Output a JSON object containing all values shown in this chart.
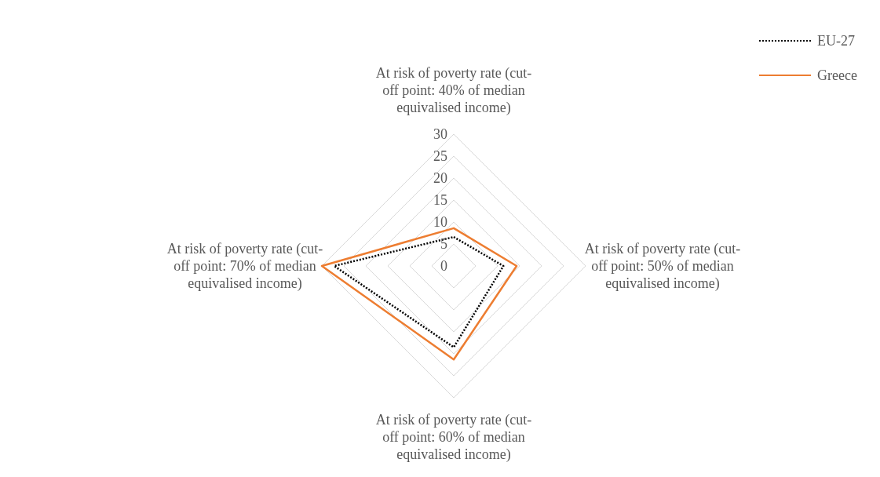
{
  "chart_data": {
    "type": "radar",
    "categories": [
      "At risk of poverty rate (cut-off point: 40% of median equivalised income)",
      "At risk of poverty rate (cut-off point: 50% of median equivalised income)",
      "At risk of poverty rate (cut-off point: 60% of median equivalised income)",
      "At risk of poverty rate (cut-off point: 70% of median equivalised income)"
    ],
    "series": [
      {
        "name": "EU-27",
        "color": "#000000",
        "values": [
          6.6,
          11.3,
          18.5,
          27.2
        ],
        "line_style": "dotted"
      },
      {
        "name": "Greece",
        "color": "#ed7d31",
        "values": [
          8.6,
          14.3,
          21.3,
          30
        ],
        "line_style": "solid"
      }
    ],
    "ylim": [
      0,
      30
    ],
    "yticks": [
      0,
      5,
      10,
      15,
      20,
      25,
      30
    ],
    "legend": "top right",
    "grid": true,
    "marker": "none"
  }
}
